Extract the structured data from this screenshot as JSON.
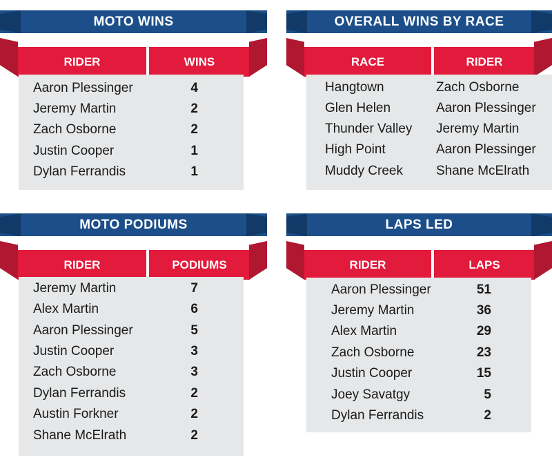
{
  "panels": [
    {
      "title": "MOTO WINS",
      "headers": [
        "RIDER",
        "WINS"
      ],
      "rows": [
        [
          "Aaron Plessinger",
          "4"
        ],
        [
          "Jeremy Martin",
          "2"
        ],
        [
          "Zach Osborne",
          "2"
        ],
        [
          "Justin Cooper",
          "1"
        ],
        [
          "Dylan Ferrandis",
          "1"
        ]
      ]
    },
    {
      "title": "OVERALL WINS BY RACE",
      "headers": [
        "RACE",
        "RIDER"
      ],
      "rows": [
        [
          "Hangtown",
          "Zach Osborne"
        ],
        [
          "Glen Helen",
          "Aaron Plessinger"
        ],
        [
          "Thunder Valley",
          "Jeremy Martin"
        ],
        [
          "High Point",
          "Aaron Plessinger"
        ],
        [
          "Muddy Creek",
          "Shane McElrath"
        ]
      ]
    },
    {
      "title": "MOTO PODIUMS",
      "headers": [
        "RIDER",
        "PODIUMS"
      ],
      "rows": [
        [
          "Jeremy Martin",
          "7"
        ],
        [
          "Alex Martin",
          "6"
        ],
        [
          "Aaron Plessinger",
          "5"
        ],
        [
          "Justin Cooper",
          "3"
        ],
        [
          "Zach Osborne",
          "3"
        ],
        [
          "Dylan Ferrandis",
          "2"
        ],
        [
          "Austin Forkner",
          "2"
        ],
        [
          "Shane McElrath",
          "2"
        ]
      ]
    },
    {
      "title": "LAPS LED",
      "headers": [
        "RIDER",
        "LAPS"
      ],
      "rows": [
        [
          "Aaron Plessinger",
          "51"
        ],
        [
          "Jeremy Martin",
          "36"
        ],
        [
          "Alex Martin",
          "29"
        ],
        [
          "Zach Osborne",
          "23"
        ],
        [
          "Justin Cooper",
          "15"
        ],
        [
          "Joey Savatgy",
          "5"
        ],
        [
          "Dylan Ferrandis",
          "2"
        ]
      ]
    }
  ],
  "colors": {
    "title_blue": "#1c4f8a",
    "header_red": "#e21a3b",
    "table_grey": "#e6e7e8"
  }
}
